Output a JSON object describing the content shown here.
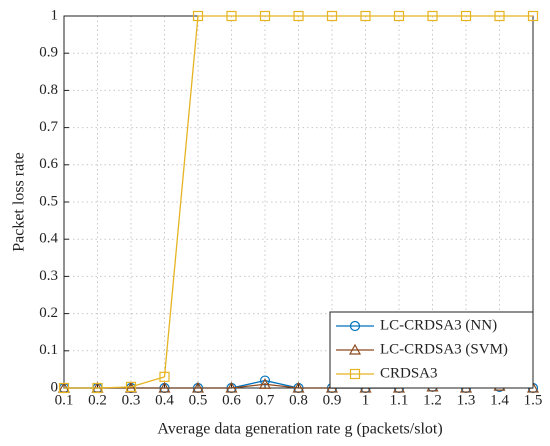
{
  "chart_data": {
    "type": "line",
    "xlabel": "Average data generation rate g  (packets/slot)",
    "ylabel": "Packet loss rate",
    "x": [
      0.1,
      0.2,
      0.3,
      0.4,
      0.5,
      0.6,
      0.7,
      0.8,
      0.9,
      1,
      1.1,
      1.2,
      1.3,
      1.4,
      1.5
    ],
    "series": [
      {
        "name": "LC-CRDSA3 (NN)",
        "color": "#0072bd",
        "marker": "circle",
        "values": [
          0,
          0,
          0,
          0,
          0,
          0,
          0.02,
          0,
          0,
          0,
          0,
          0.003,
          0,
          0.003,
          0
        ]
      },
      {
        "name": "LC-CRDSA3 (SVM)",
        "color": "#8c4a1e",
        "marker": "triangle",
        "values": [
          0,
          0,
          0,
          0,
          0,
          0,
          0.01,
          0,
          0,
          0,
          0,
          0.003,
          0,
          0.005,
          0
        ]
      },
      {
        "name": "CRDSA3",
        "color": "#e6b422",
        "marker": "square",
        "values": [
          0,
          0,
          0.003,
          0.03,
          1,
          1,
          1,
          1,
          1,
          1,
          1,
          1,
          1,
          1,
          1
        ]
      }
    ],
    "xlim": [
      0.1,
      1.5
    ],
    "xticks": [
      0.1,
      0.2,
      0.3,
      0.4,
      0.5,
      0.6,
      0.7,
      0.8,
      0.9,
      1,
      1.1,
      1.2,
      1.3,
      1.4,
      1.5
    ],
    "ylim": [
      0,
      1
    ],
    "yticks": [
      0,
      0.1,
      0.2,
      0.3,
      0.4,
      0.5,
      0.6,
      0.7,
      0.8,
      0.9,
      1
    ],
    "grid": true,
    "legend": "lower right"
  }
}
